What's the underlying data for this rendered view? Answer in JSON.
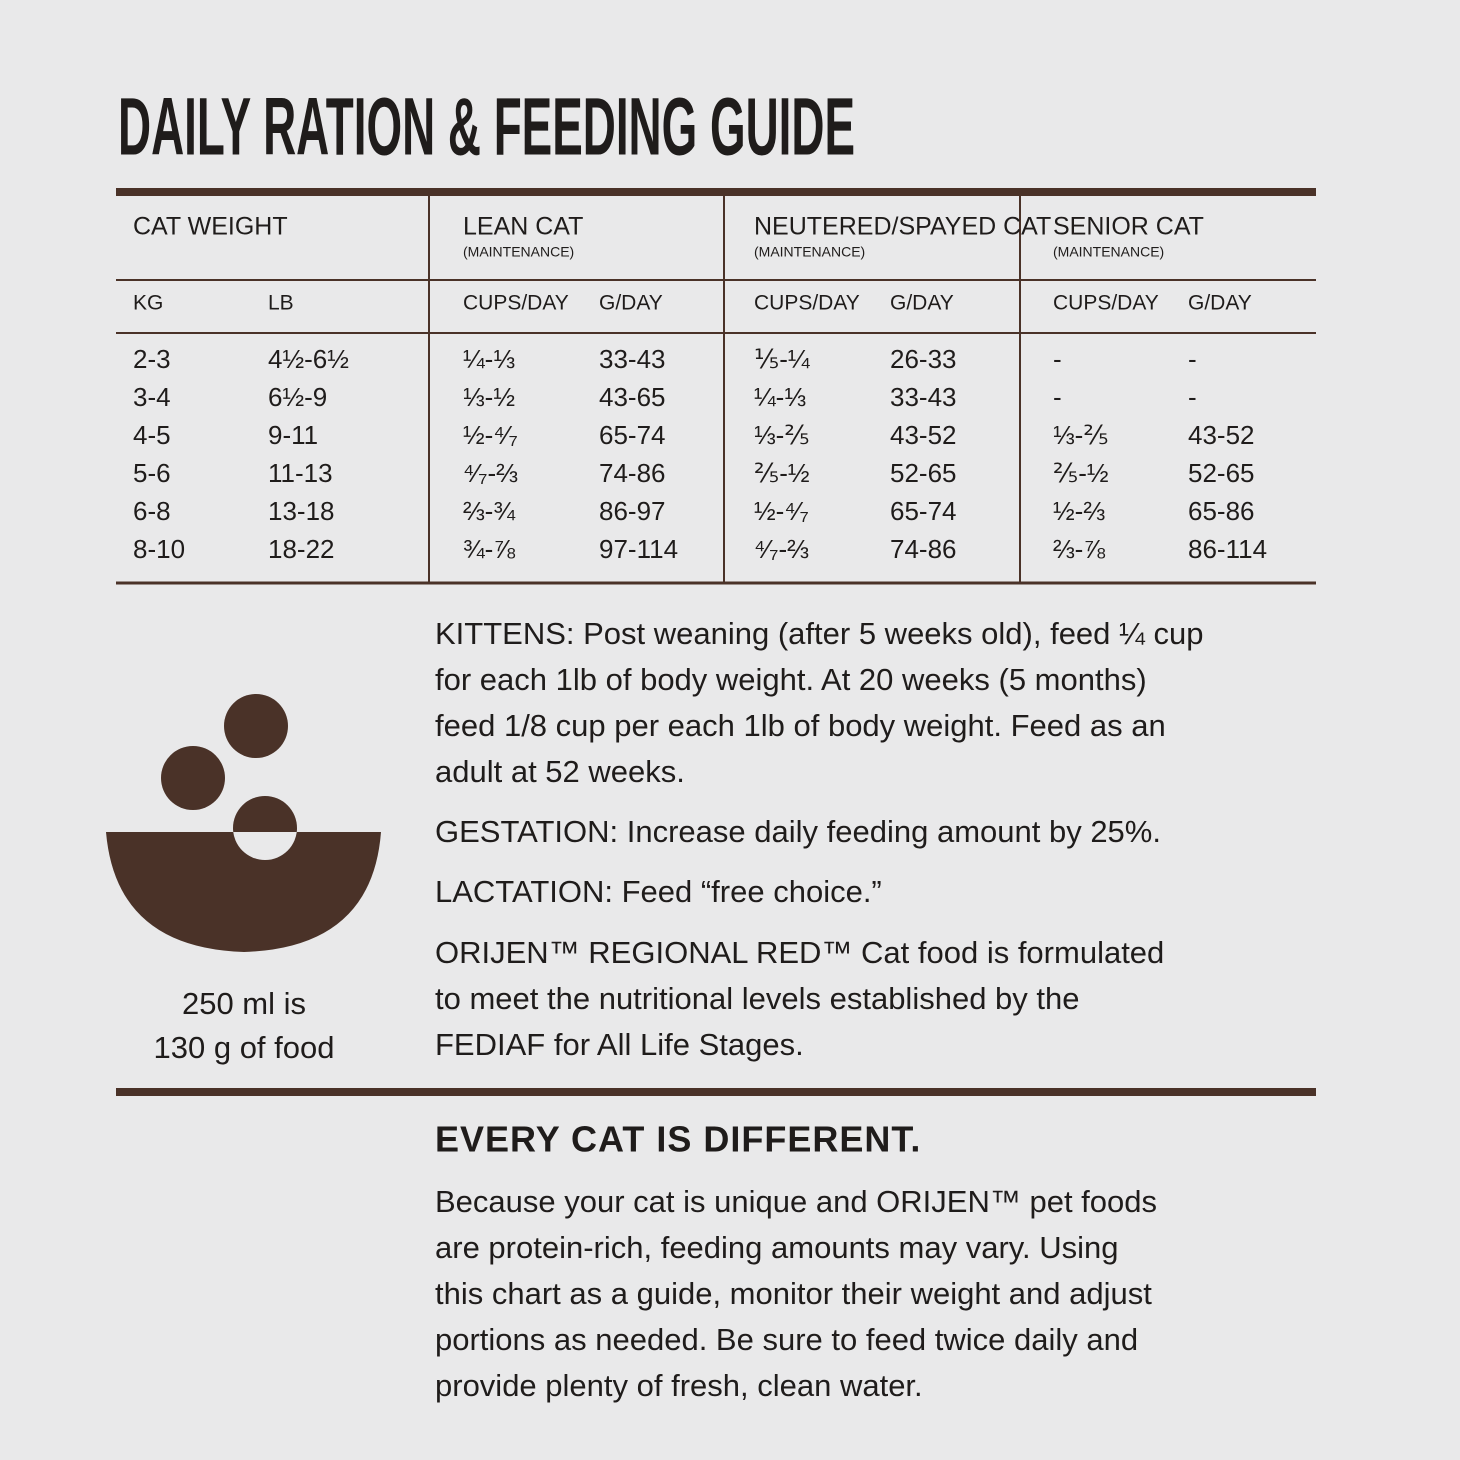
{
  "title": "DAILY RATION & FEEDING GUIDE",
  "table": {
    "groups": [
      {
        "label": "CAT WEIGHT"
      },
      {
        "label": "LEAN CAT",
        "note": "(MAINTENANCE)"
      },
      {
        "label": "NEUTERED/SPAYED CAT",
        "note": "(MAINTENANCE)"
      },
      {
        "label": "SENIOR CAT",
        "note": "(MAINTENANCE)"
      }
    ],
    "subheaders": [
      "KG",
      "LB",
      "CUPS/DAY",
      "G/DAY",
      "CUPS/DAY",
      "G/DAY",
      "CUPS/DAY",
      "G/DAY"
    ],
    "rows": [
      [
        "2-3",
        "4½-6½",
        "¼-⅓",
        "33-43",
        "⅕-¼",
        "26-33",
        "-",
        "-"
      ],
      [
        "3-4",
        "6½-9",
        "⅓-½",
        "43-65",
        "¼-⅓",
        "33-43",
        "-",
        "-"
      ],
      [
        "4-5",
        "9-11",
        "½-⁴⁄₇",
        "65-74",
        "⅓-⅖",
        "43-52",
        "⅓-⅖",
        "43-52"
      ],
      [
        "5-6",
        "11-13",
        "⁴⁄₇-⅔",
        "74-86",
        "⅖-½",
        "52-65",
        "⅖-½",
        "52-65"
      ],
      [
        "6-8",
        "13-18",
        "⅔-¾",
        "86-97",
        "½-⁴⁄₇",
        "65-74",
        "½-⅔",
        "65-86"
      ],
      [
        "8-10",
        "18-22",
        "¾-⅞",
        "97-114",
        "⁴⁄₇-⅔",
        "74-86",
        "⅔-⅞",
        "86-114"
      ]
    ]
  },
  "icon_caption": [
    "250 ml is",
    "130 g of food"
  ],
  "notes": [
    [
      "KITTENS: Post weaning (after 5 weeks old), feed ¼ cup",
      "for each 1lb of body weight. At 20 weeks (5 months)",
      "feed 1/8 cup per each 1lb of body weight. Feed as an",
      "adult at 52 weeks."
    ],
    [
      "GESTATION: Increase daily feeding amount by 25%."
    ],
    [
      "LACTATION: Feed “free choice.”"
    ],
    [
      "ORIJEN™ REGIONAL RED™ Cat food is formulated",
      "to meet the nutritional levels established by the",
      "FEDIAF for All Life Stages."
    ]
  ],
  "footer": {
    "heading": "EVERY CAT IS DIFFERENT.",
    "lines": [
      "Because your cat is unique and ORIJEN™ pet foods",
      "are protein-rich, feeding amounts may vary. Using",
      "this chart as a guide, monitor their weight and adjust",
      "portions as needed. Be sure to feed twice daily and",
      "provide plenty of fresh, clean water."
    ]
  }
}
